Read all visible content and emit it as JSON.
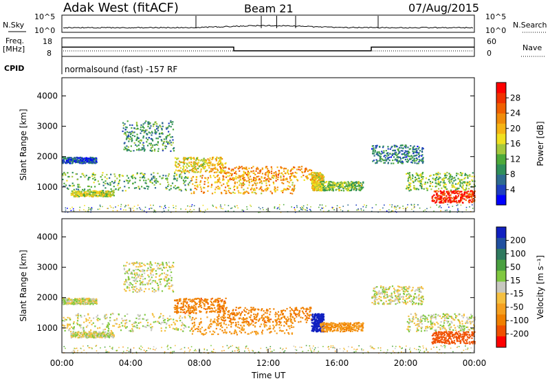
{
  "header": {
    "station": "Adak West (fitACF)",
    "beam": "Beam 21",
    "date": "07/Aug/2015"
  },
  "top_panels": {
    "nsky_label": "N.Sky",
    "nsky_ticks": [
      "10^5",
      "10^0"
    ],
    "nsearch_label": "N.Search",
    "nsearch_ticks": [
      "10^5",
      "10^0"
    ],
    "freq_label_line1": "Freq.",
    "freq_label_line2": "[MHz]",
    "freq_ticks": [
      "18",
      "8"
    ],
    "nave_ticks": [
      "60",
      "0"
    ],
    "nave_label": "Nave",
    "cpid_label": "CPID",
    "cpid_text": "normalsound (fast) -157 RF"
  },
  "power_colorbar": {
    "label": "Power [dB]",
    "ticks": [
      "28",
      "24",
      "20",
      "16",
      "12",
      "8",
      "4"
    ],
    "colors": [
      "#0000ff",
      "#1f3fbf",
      "#2e6b8f",
      "#2f8f5a",
      "#4daa3a",
      "#a5c83c",
      "#f0e020",
      "#f5b414",
      "#f08c0a",
      "#f06000",
      "#f03200",
      "#ff0000"
    ]
  },
  "velocity_colorbar": {
    "label": "Velocity [m s⁻¹]",
    "ticks": [
      "200",
      "100",
      "50",
      "15",
      "-15",
      "-50",
      "-100",
      "-200"
    ],
    "colors": [
      "#1020c0",
      "#2050a0",
      "#2f7a5f",
      "#4aa040",
      "#80c840",
      "#c8c8c0",
      "#f5c040",
      "#f5a020",
      "#f08000",
      "#f05000",
      "#ff0000"
    ]
  },
  "chart_data": {
    "type": "heatmap",
    "panels": [
      "Power",
      "Velocity"
    ],
    "xlabel": "Time UT",
    "x_ticks": [
      "00:00",
      "04:00",
      "08:00",
      "12:00",
      "16:00",
      "20:00",
      "00:00"
    ],
    "xlim_hours": [
      0,
      24
    ],
    "ylabel": "Slant Range [km]",
    "y_ticks": [
      1000,
      2000,
      3000,
      4000
    ],
    "ylim_km": [
      180,
      4600
    ],
    "frequency_mhz_segments": [
      {
        "from_hour": 0,
        "to_hour": 10,
        "value": 13
      },
      {
        "from_hour": 10,
        "to_hour": 18,
        "value": 11
      },
      {
        "from_hour": 18,
        "to_hour": 24,
        "value": 13
      }
    ],
    "echo_regions": [
      {
        "t0": 0.0,
        "t1": 7.5,
        "r0": 900,
        "r1": 1500,
        "power": 12,
        "velocity": 0
      },
      {
        "t0": 0.0,
        "t1": 2.0,
        "r0": 1800,
        "r1": 2000,
        "power": 6,
        "velocity": 0
      },
      {
        "t0": 0.5,
        "t1": 3.0,
        "r0": 700,
        "r1": 900,
        "power": 16,
        "velocity": 0
      },
      {
        "t0": 3.5,
        "t1": 6.5,
        "r0": 2200,
        "r1": 3200,
        "power": 10,
        "velocity": 0
      },
      {
        "t0": 6.5,
        "t1": 9.5,
        "r0": 1500,
        "r1": 2000,
        "power": 18,
        "velocity": -100
      },
      {
        "t0": 7.5,
        "t1": 13.5,
        "r0": 800,
        "r1": 1400,
        "power": 20,
        "velocity": -50
      },
      {
        "t0": 9.0,
        "t1": 14.5,
        "r0": 1200,
        "r1": 1700,
        "power": 22,
        "velocity": -100
      },
      {
        "t0": 14.5,
        "t1": 15.2,
        "r0": 900,
        "r1": 1500,
        "power": 18,
        "velocity": 200
      },
      {
        "t0": 15.0,
        "t1": 17.5,
        "r0": 900,
        "r1": 1200,
        "power": 14,
        "velocity": -50
      },
      {
        "t0": 18.0,
        "t1": 21.0,
        "r0": 1800,
        "r1": 2400,
        "power": 8,
        "velocity": 0
      },
      {
        "t0": 20.0,
        "t1": 24.0,
        "r0": 900,
        "r1": 1500,
        "power": 14,
        "velocity": 0
      },
      {
        "t0": 21.5,
        "t1": 24.0,
        "r0": 500,
        "r1": 900,
        "power": 28,
        "velocity": -150
      }
    ]
  }
}
